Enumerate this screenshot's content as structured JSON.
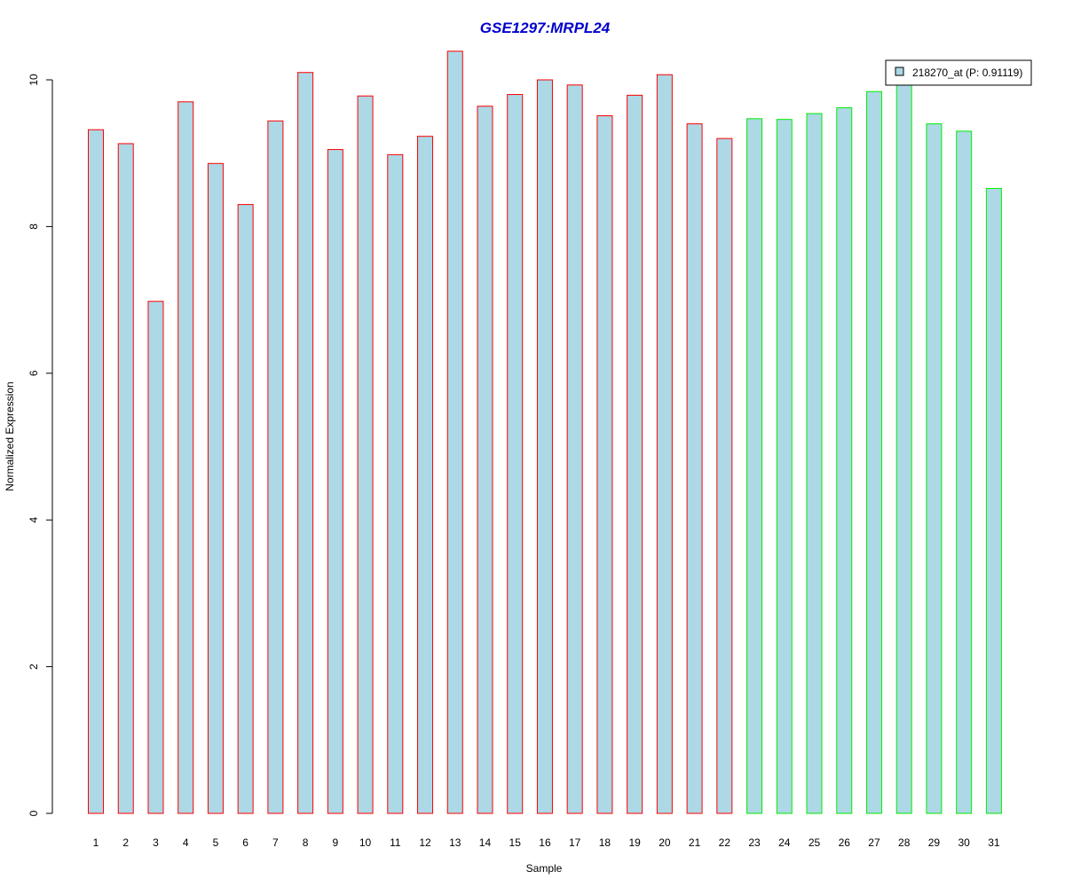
{
  "chart_data": {
    "type": "bar",
    "title": "GSE1297:MRPL24",
    "xlabel": "Sample",
    "ylabel": "Normalized Expression",
    "ylim": [
      0,
      10.5
    ],
    "yticks": [
      0,
      2,
      4,
      6,
      8,
      10
    ],
    "grid": false,
    "legend_position": "top-right",
    "categories": [
      "1",
      "2",
      "3",
      "4",
      "5",
      "6",
      "7",
      "8",
      "9",
      "10",
      "11",
      "12",
      "13",
      "14",
      "15",
      "16",
      "17",
      "18",
      "19",
      "20",
      "21",
      "22",
      "23",
      "24",
      "25",
      "26",
      "27",
      "28",
      "29",
      "30",
      "31"
    ],
    "series": [
      {
        "name": "218270_at (P: 0.91119)",
        "values": [
          9.32,
          9.13,
          6.98,
          9.7,
          8.86,
          8.3,
          9.44,
          10.1,
          9.05,
          9.78,
          8.98,
          9.23,
          10.39,
          9.64,
          9.8,
          10.0,
          9.93,
          9.51,
          9.79,
          10.07,
          9.4,
          9.2,
          9.47,
          9.46,
          9.54,
          9.62,
          9.84,
          9.98,
          9.4,
          9.3,
          8.52
        ],
        "fill": "#add8e6",
        "group_border_colors": [
          "#ff0000",
          "#ff0000",
          "#ff0000",
          "#ff0000",
          "#ff0000",
          "#ff0000",
          "#ff0000",
          "#ff0000",
          "#ff0000",
          "#ff0000",
          "#ff0000",
          "#ff0000",
          "#ff0000",
          "#ff0000",
          "#ff0000",
          "#ff0000",
          "#ff0000",
          "#ff0000",
          "#ff0000",
          "#ff0000",
          "#ff0000",
          "#ff0000",
          "#00ee00",
          "#00ee00",
          "#00ee00",
          "#00ee00",
          "#00ee00",
          "#00ee00",
          "#00ee00",
          "#00ee00",
          "#00ee00"
        ]
      }
    ],
    "colors": {
      "title": "#0000cc",
      "axis": "#000000"
    }
  }
}
